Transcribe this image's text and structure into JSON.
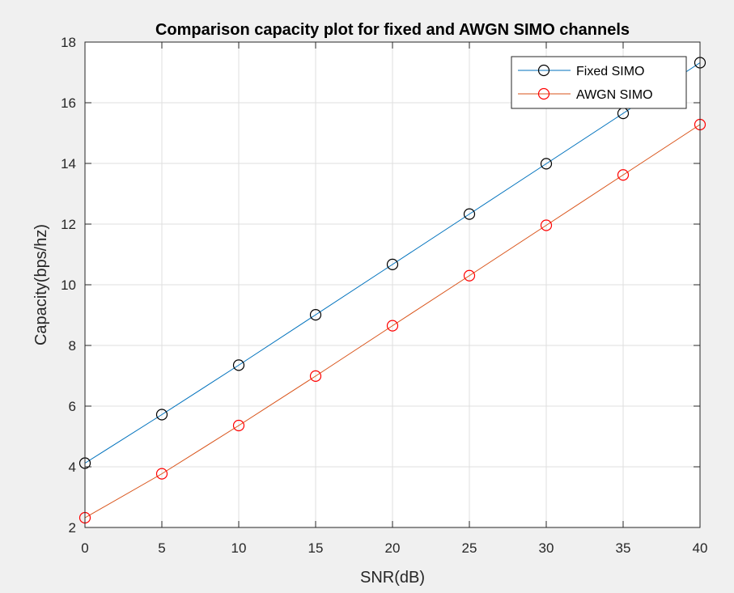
{
  "chart_data": {
    "type": "line",
    "title": "Comparison capacity plot for fixed and AWGN SIMO channels",
    "xlabel": "SNR(dB)",
    "ylabel": "Capacity(bps/hz)",
    "xlim": [
      0,
      40
    ],
    "ylim": [
      2,
      18
    ],
    "xticks": [
      0,
      5,
      10,
      15,
      20,
      25,
      30,
      35,
      40
    ],
    "yticks": [
      2,
      4,
      6,
      8,
      10,
      12,
      14,
      16,
      18
    ],
    "grid": true,
    "legend_position": "top-right",
    "x": [
      0,
      5,
      10,
      15,
      20,
      25,
      30,
      35,
      40
    ],
    "series": [
      {
        "name": "Fixed SIMO",
        "color": "#0072bd",
        "marker": "circle",
        "marker_color": "#000000",
        "values": [
          4.12,
          5.72,
          7.35,
          9.01,
          10.67,
          12.33,
          13.99,
          15.65,
          17.32
        ]
      },
      {
        "name": "AWGN SIMO",
        "color": "#d95319",
        "marker": "circle",
        "marker_color": "#ff0000",
        "values": [
          2.32,
          3.77,
          5.36,
          6.99,
          8.65,
          10.3,
          11.96,
          13.62,
          15.28
        ]
      }
    ]
  }
}
